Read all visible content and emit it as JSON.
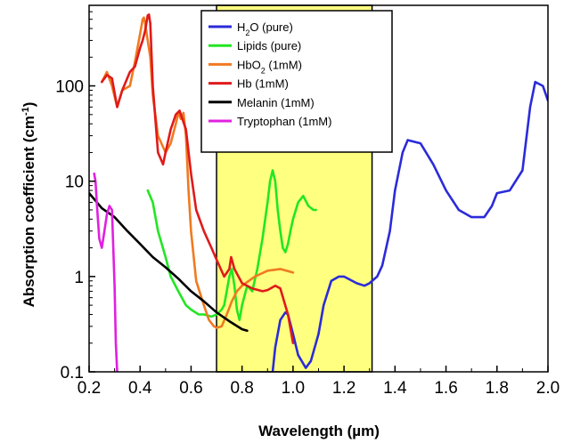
{
  "chart_data": {
    "type": "line",
    "xlabel": "Wavelength (µm)",
    "ylabel_main": "Absorption coefficient (cm",
    "ylabel_sup": "-1",
    "ylabel_tail": ")",
    "x_scale": "linear",
    "y_scale": "log",
    "xlim": [
      0.2,
      2.0
    ],
    "ylim": [
      0.1,
      700
    ],
    "x_ticks": [
      "0.2",
      "0.4",
      "0.6",
      "0.8",
      "1.0",
      "1.2",
      "1.4",
      "1.6",
      "1.8",
      "2.0"
    ],
    "y_ticks": [
      "0.1",
      "1",
      "10",
      "100"
    ],
    "grid": false,
    "legend_position": "top-center",
    "highlight_band": {
      "x": [
        0.7,
        1.31
      ],
      "color": "#ffff80"
    },
    "series": [
      {
        "name": "H2O (pure)",
        "legend_parts": [
          "H",
          "2",
          "O (pure)"
        ],
        "color": "#2b2bd9",
        "x": [
          0.92,
          0.93,
          0.95,
          0.97,
          0.98,
          1.0,
          1.02,
          1.05,
          1.07,
          1.1,
          1.12,
          1.15,
          1.18,
          1.2,
          1.25,
          1.28,
          1.3,
          1.33,
          1.35,
          1.38,
          1.4,
          1.43,
          1.45,
          1.5,
          1.55,
          1.6,
          1.65,
          1.7,
          1.75,
          1.78,
          1.8,
          1.85,
          1.9,
          1.93,
          1.95,
          1.98,
          2.0
        ],
        "y": [
          0.1,
          0.18,
          0.35,
          0.42,
          0.4,
          0.25,
          0.15,
          0.11,
          0.13,
          0.25,
          0.5,
          0.9,
          1.0,
          1.0,
          0.85,
          0.8,
          0.85,
          1.0,
          1.3,
          3.0,
          8.0,
          20.0,
          27.0,
          25.0,
          15.0,
          8.0,
          5.0,
          4.2,
          4.2,
          5.5,
          7.5,
          8.0,
          13.0,
          60.0,
          110.0,
          100.0,
          70.0
        ]
      },
      {
        "name": "Lipids (pure)",
        "color": "#22e622",
        "x": [
          0.43,
          0.45,
          0.47,
          0.5,
          0.52,
          0.55,
          0.58,
          0.6,
          0.63,
          0.65,
          0.68,
          0.7,
          0.72,
          0.73,
          0.74,
          0.75,
          0.76,
          0.77,
          0.78,
          0.79,
          0.8,
          0.82,
          0.84,
          0.86,
          0.88,
          0.9,
          0.91,
          0.92,
          0.93,
          0.94,
          0.95,
          0.96,
          0.97,
          0.98,
          0.99,
          1.0,
          1.02,
          1.04,
          1.06,
          1.08,
          1.09
        ],
        "y": [
          8.0,
          6.0,
          3.0,
          1.6,
          1.0,
          0.7,
          0.5,
          0.45,
          0.4,
          0.4,
          0.38,
          0.4,
          0.45,
          0.5,
          0.7,
          1.0,
          1.2,
          0.8,
          0.45,
          0.35,
          0.5,
          0.8,
          0.7,
          1.2,
          2.5,
          6.0,
          10.0,
          13.0,
          10.0,
          5.0,
          3.0,
          2.0,
          1.8,
          2.2,
          3.0,
          4.0,
          6.0,
          7.0,
          5.5,
          5.0,
          5.0
        ]
      },
      {
        "name": "HbO2 (1mM)",
        "legend_parts": [
          "HbO",
          "2",
          " (1mM)"
        ],
        "color": "#f07a20",
        "x": [
          0.25,
          0.27,
          0.29,
          0.31,
          0.33,
          0.36,
          0.38,
          0.4,
          0.41,
          0.415,
          0.42,
          0.43,
          0.44,
          0.45,
          0.47,
          0.5,
          0.52,
          0.54,
          0.55,
          0.56,
          0.57,
          0.58,
          0.59,
          0.6,
          0.62,
          0.65,
          0.67,
          0.69,
          0.7,
          0.72,
          0.74,
          0.76,
          0.78,
          0.8,
          0.85,
          0.9,
          0.95,
          1.0
        ],
        "y": [
          110.0,
          140.0,
          100.0,
          60.0,
          90.0,
          100.0,
          180.0,
          350.0,
          500.0,
          520.0,
          450.0,
          300.0,
          200.0,
          80.0,
          30.0,
          20.0,
          25.0,
          40.0,
          52.0,
          45.0,
          52.0,
          30.0,
          8.0,
          3.0,
          0.9,
          0.5,
          0.35,
          0.3,
          0.29,
          0.3,
          0.4,
          0.55,
          0.7,
          0.8,
          1.0,
          1.15,
          1.2,
          1.1
        ]
      },
      {
        "name": "Hb (1mM)",
        "color": "#e01a1a",
        "x": [
          0.25,
          0.27,
          0.29,
          0.31,
          0.33,
          0.36,
          0.38,
          0.4,
          0.41,
          0.42,
          0.43,
          0.435,
          0.44,
          0.45,
          0.47,
          0.49,
          0.5,
          0.52,
          0.54,
          0.555,
          0.56,
          0.58,
          0.6,
          0.62,
          0.65,
          0.68,
          0.7,
          0.73,
          0.75,
          0.757,
          0.77,
          0.8,
          0.84,
          0.88,
          0.9,
          0.93,
          0.95,
          0.98,
          1.0
        ],
        "y": [
          110.0,
          130.0,
          120.0,
          60.0,
          90.0,
          140.0,
          160.0,
          250.0,
          300.0,
          380.0,
          550.0,
          560.0,
          450.0,
          100.0,
          20.0,
          15.0,
          20.0,
          35.0,
          50.0,
          55.0,
          50.0,
          35.0,
          12.0,
          5.0,
          3.0,
          2.0,
          1.5,
          1.0,
          1.2,
          1.6,
          1.2,
          0.85,
          0.75,
          0.7,
          0.72,
          0.8,
          0.75,
          0.4,
          0.2
        ]
      },
      {
        "name": "Melanin (1mM)",
        "color": "#000000",
        "x": [
          0.2,
          0.25,
          0.3,
          0.35,
          0.4,
          0.45,
          0.5,
          0.55,
          0.6,
          0.65,
          0.7,
          0.75,
          0.8,
          0.82
        ],
        "y": [
          7.5,
          5.2,
          4.2,
          3.0,
          2.2,
          1.6,
          1.25,
          0.95,
          0.7,
          0.55,
          0.42,
          0.34,
          0.28,
          0.27
        ]
      },
      {
        "name": "Tryptophan (1mM)",
        "color": "#e020e0",
        "x": [
          0.22,
          0.225,
          0.23,
          0.24,
          0.25,
          0.26,
          0.27,
          0.28,
          0.29,
          0.3,
          0.305,
          0.31
        ],
        "y": [
          12.0,
          10.0,
          6.0,
          2.5,
          2.0,
          3.0,
          4.5,
          5.5,
          5.0,
          0.8,
          0.2,
          0.1
        ]
      }
    ]
  }
}
